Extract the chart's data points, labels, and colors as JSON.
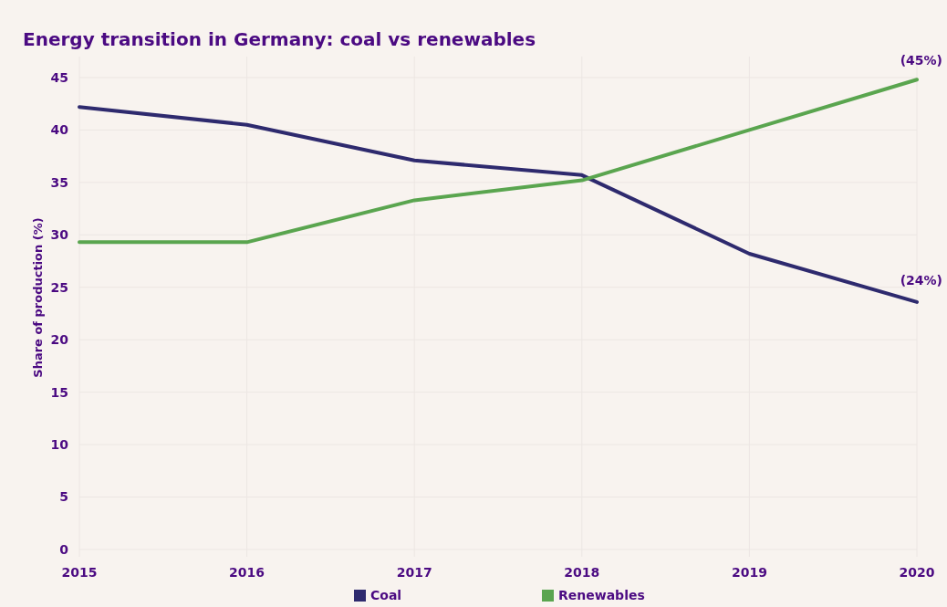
{
  "chart_data": {
    "type": "line",
    "title": "Energy transition in Germany: coal vs renewables",
    "ylabel": "Share of production (%)",
    "x": [
      2015,
      2016,
      2017,
      2018,
      2019,
      2020
    ],
    "xlim": [
      2015,
      2020
    ],
    "xticks": [
      2015,
      2016,
      2017,
      2018,
      2019,
      2020
    ],
    "ylim": [
      -0.7,
      47
    ],
    "yticks": [
      0,
      5,
      10,
      15,
      20,
      25,
      30,
      35,
      40,
      45
    ],
    "series": [
      {
        "name": "Coal",
        "color": "#2e2a6e",
        "values": [
          42.2,
          40.5,
          37.1,
          35.7,
          28.2,
          23.6
        ]
      },
      {
        "name": "Renewables",
        "color": "#5aa54f",
        "values": [
          29.3,
          29.3,
          33.3,
          35.2,
          40.0,
          44.8
        ]
      }
    ],
    "annotations": [
      {
        "text": "(45%)",
        "x": 2020,
        "y": 45
      },
      {
        "text": "(24%)",
        "x": 2020,
        "y": 24
      }
    ],
    "grid": true,
    "legend": "bottom",
    "marker": "none",
    "line_style": "solid"
  }
}
